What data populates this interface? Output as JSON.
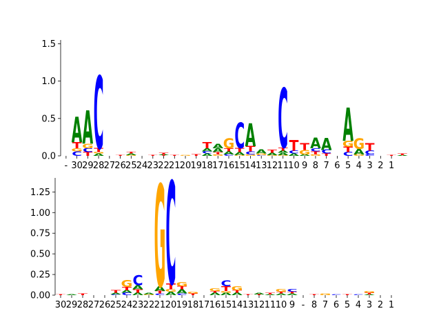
{
  "chart_data": [
    {
      "type": "sequence-logo",
      "ylabel": "",
      "ylim": [
        0,
        1.55
      ],
      "yticks": [
        "0.0",
        "0.5",
        "1.0",
        "1.5"
      ],
      "ytick_values": [
        0,
        0.5,
        1.0,
        1.5
      ],
      "grid": false,
      "letter_colors": {
        "A": "#008000",
        "C": "#0000ff",
        "G": "#ffa500",
        "T": "#ff0000"
      },
      "positions": [
        "-",
        "30",
        "29",
        "28",
        "27",
        "26",
        "25",
        "24",
        "23",
        "22",
        "21",
        "20",
        "19",
        "18",
        "17",
        "16",
        "15",
        "14",
        "13",
        "12",
        "11",
        "10",
        "9",
        "8",
        "7",
        "6",
        "5",
        "4",
        "3",
        "2",
        "1"
      ],
      "stacks": [
        [],
        [
          [
            "C",
            0.06
          ],
          [
            "G",
            0.04
          ],
          [
            "T",
            0.08
          ],
          [
            "A",
            0.34
          ]
        ],
        [
          [
            "T",
            0.05
          ],
          [
            "C",
            0.05
          ],
          [
            "G",
            0.06
          ],
          [
            "A",
            0.44
          ]
        ],
        [
          [
            "A",
            0.03
          ],
          [
            "G",
            0.02
          ],
          [
            "T",
            0.05
          ],
          [
            "C",
            0.96
          ]
        ],
        [],
        [
          [
            "T",
            0.01
          ]
        ],
        [
          [
            "G",
            0.01
          ],
          [
            "A",
            0.02
          ],
          [
            "T",
            0.02
          ]
        ],
        [],
        [
          [
            "T",
            0.01
          ]
        ],
        [
          [
            "T",
            0.01
          ],
          [
            "A",
            0.01
          ],
          [
            "T",
            0.02
          ]
        ],
        [
          [
            "T",
            0.01
          ]
        ],
        [
          [
            "G",
            0.01
          ]
        ],
        [
          [
            "T",
            0.02
          ]
        ],
        [
          [
            "A",
            0.03
          ],
          [
            "C",
            0.03
          ],
          [
            "A",
            0.04
          ],
          [
            "T",
            0.08
          ]
        ],
        [
          [
            "G",
            0.02
          ],
          [
            "T",
            0.03
          ],
          [
            "A",
            0.05
          ],
          [
            "A",
            0.06
          ]
        ],
        [
          [
            "C",
            0.02
          ],
          [
            "A",
            0.04
          ],
          [
            "T",
            0.04
          ],
          [
            "G",
            0.13
          ]
        ],
        [
          [
            "G",
            0.01
          ],
          [
            "A",
            0.04
          ],
          [
            "T",
            0.05
          ],
          [
            "C",
            0.34
          ]
        ],
        [
          [
            "G",
            0.02
          ],
          [
            "C",
            0.04
          ],
          [
            "T",
            0.07
          ],
          [
            "A",
            0.3
          ]
        ],
        [
          [
            "C",
            0.01
          ],
          [
            "G",
            0.02
          ],
          [
            "A",
            0.05
          ]
        ],
        [
          [
            "G",
            0.01
          ],
          [
            "A",
            0.03
          ],
          [
            "T",
            0.04
          ]
        ],
        [
          [
            "G",
            0.01
          ],
          [
            "A",
            0.03
          ],
          [
            "A",
            0.03
          ],
          [
            "T",
            0.04
          ],
          [
            "C",
            0.79
          ]
        ],
        [
          [
            "A",
            0.03
          ],
          [
            "C",
            0.04
          ],
          [
            "T",
            0.14
          ]
        ],
        [
          [
            "A",
            0.02
          ],
          [
            "G",
            0.06
          ],
          [
            "T",
            0.09
          ]
        ],
        [
          [
            "G",
            0.02
          ],
          [
            "T",
            0.04
          ],
          [
            "C",
            0.04
          ],
          [
            "A",
            0.14
          ]
        ],
        [
          [
            "T",
            0.03
          ],
          [
            "C",
            0.05
          ],
          [
            "A",
            0.16
          ]
        ],
        [],
        [
          [
            "C",
            0.05
          ],
          [
            "T",
            0.07
          ],
          [
            "G",
            0.08
          ],
          [
            "A",
            0.44
          ]
        ],
        [
          [
            "G",
            0.02
          ],
          [
            "A",
            0.07
          ],
          [
            "G",
            0.14
          ]
        ],
        [
          [
            "C",
            0.02
          ],
          [
            "C",
            0.05
          ],
          [
            "T",
            0.1
          ]
        ],
        [],
        [
          [
            "T",
            0.01
          ]
        ],
        [
          [
            "A",
            0.01
          ],
          [
            "T",
            0.02
          ]
        ]
      ]
    },
    {
      "type": "sequence-logo",
      "ylabel": "",
      "ylim": [
        0,
        1.42
      ],
      "yticks": [
        "0.00",
        "0.25",
        "0.50",
        "0.75",
        "1.00",
        "1.25"
      ],
      "ytick_values": [
        0,
        0.25,
        0.5,
        0.75,
        1.0,
        1.25
      ],
      "grid": false,
      "letter_colors": {
        "A": "#008000",
        "C": "#0000ff",
        "G": "#ffa500",
        "T": "#ff0000"
      },
      "positions": [
        "30",
        "29",
        "28",
        "27",
        "26",
        "25",
        "24",
        "23",
        "22",
        "21",
        "20",
        "19",
        "18",
        "17",
        "16",
        "15",
        "14",
        "13",
        "12",
        "11",
        "10",
        "9",
        "-",
        "8",
        "7",
        "6",
        "5",
        "4",
        "3",
        "2",
        "1"
      ],
      "stacks": [
        [
          [
            "T",
            0.01
          ]
        ],
        [
          [
            "A",
            0.01
          ]
        ],
        [
          [
            "T",
            0.02
          ]
        ],
        [],
        [],
        [
          [
            "C",
            0.01
          ],
          [
            "A",
            0.02
          ],
          [
            "T",
            0.03
          ]
        ],
        [
          [
            "C",
            0.03
          ],
          [
            "A",
            0.03
          ],
          [
            "T",
            0.04
          ],
          [
            "G",
            0.08
          ]
        ],
        [
          [
            "A",
            0.03
          ],
          [
            "T",
            0.04
          ],
          [
            "A",
            0.05
          ],
          [
            "C",
            0.12
          ]
        ],
        [
          [
            "G",
            0.01
          ],
          [
            "A",
            0.02
          ]
        ],
        [
          [
            "C",
            0.02
          ],
          [
            "T",
            0.03
          ],
          [
            "A",
            0.06
          ],
          [
            "G",
            1.22
          ]
        ],
        [
          [
            "A",
            0.04
          ],
          [
            "G",
            0.03
          ],
          [
            "T",
            0.07
          ],
          [
            "C",
            1.23
          ]
        ],
        [
          [
            "C",
            0.02
          ],
          [
            "A",
            0.05
          ],
          [
            "T",
            0.04
          ],
          [
            "G",
            0.05
          ]
        ],
        [
          [
            "T",
            0.02
          ],
          [
            "G",
            0.02
          ]
        ],
        [],
        [
          [
            "A",
            0.03
          ],
          [
            "T",
            0.02
          ],
          [
            "G",
            0.03
          ]
        ],
        [
          [
            "A",
            0.03
          ],
          [
            "G",
            0.02
          ],
          [
            "T",
            0.06
          ],
          [
            "C",
            0.07
          ]
        ],
        [
          [
            "A",
            0.03
          ],
          [
            "T",
            0.03
          ],
          [
            "G",
            0.05
          ]
        ],
        [
          [
            "T",
            0.01
          ]
        ],
        [
          [
            "T",
            0.01
          ],
          [
            "A",
            0.02
          ]
        ],
        [
          [
            "A",
            0.01
          ],
          [
            "T",
            0.02
          ]
        ],
        [
          [
            "A",
            0.02
          ],
          [
            "T",
            0.02
          ],
          [
            "G",
            0.03
          ]
        ],
        [
          [
            "A",
            0.02
          ],
          [
            "T",
            0.02
          ],
          [
            "C",
            0.03
          ]
        ],
        [],
        [
          [
            "T",
            0.01
          ]
        ],
        [
          [
            "G",
            0.01
          ],
          [
            "G",
            0.01
          ]
        ],
        [
          [
            "C",
            0.01
          ]
        ],
        [
          [
            "T",
            0.01
          ]
        ],
        [
          [
            "C",
            0.01
          ]
        ],
        [
          [
            "A",
            0.01
          ],
          [
            "T",
            0.02
          ],
          [
            "G",
            0.02
          ]
        ],
        [],
        []
      ]
    }
  ]
}
